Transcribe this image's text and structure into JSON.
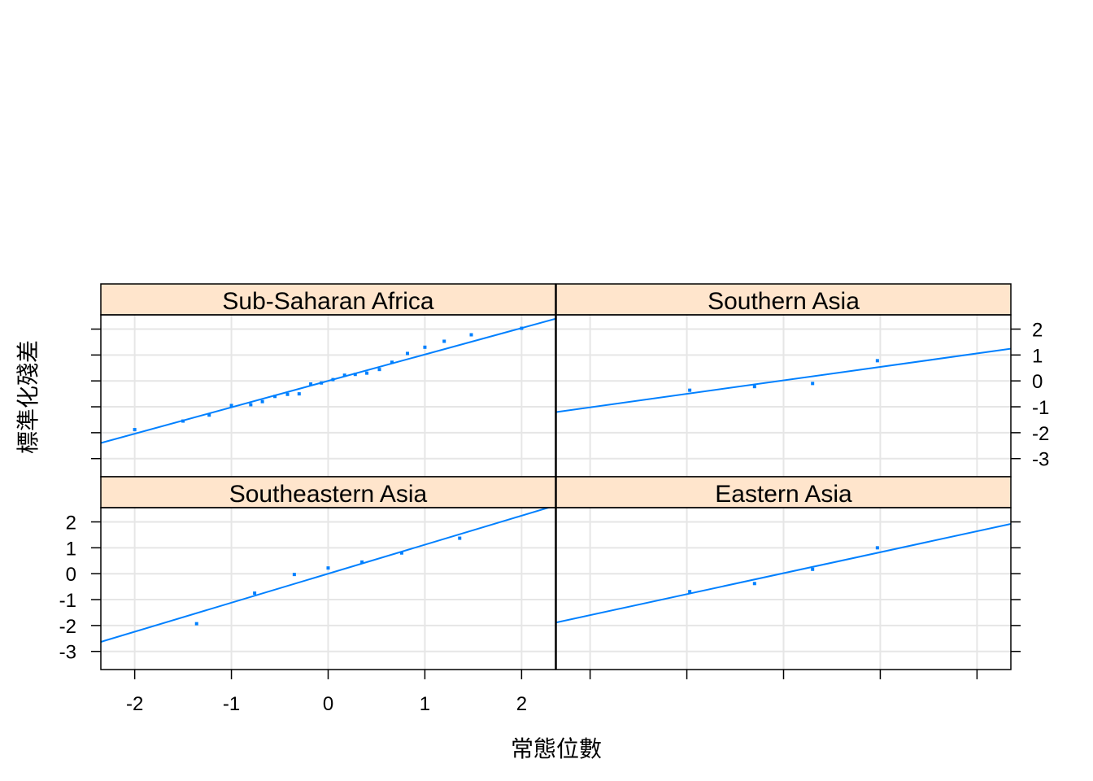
{
  "chart_data": {
    "type": "scatter",
    "kind": "normal-qq-plot-with-reference-line",
    "xlabel": "常態位數",
    "ylabel": "標準化殘差",
    "xlim": [
      -2.35,
      2.35
    ],
    "ylim": [
      -3.7,
      2.55
    ],
    "x_ticks": [
      -2,
      -1,
      0,
      1,
      2
    ],
    "y_ticks": [
      -3,
      -2,
      -1,
      0,
      1,
      2
    ],
    "grid": true,
    "colors": {
      "points": "#0080ff",
      "line": "#0080ff",
      "strip": "#ffe5cc",
      "grid": "#e6e6e6",
      "frame": "#000000"
    },
    "panels": [
      {
        "name": "Sub-Saharan Africa",
        "x": [
          -2.0,
          -1.5,
          -1.23,
          -1.0,
          -0.8,
          -0.68,
          -0.55,
          -0.42,
          -0.3,
          -0.18,
          -0.07,
          0.05,
          0.17,
          0.28,
          0.4,
          0.53,
          0.66,
          0.82,
          1.0,
          1.2,
          1.48,
          2.0
        ],
        "y": [
          -1.88,
          -1.55,
          -1.32,
          -0.95,
          -0.92,
          -0.8,
          -0.6,
          -0.52,
          -0.5,
          -0.12,
          -0.08,
          0.05,
          0.22,
          0.25,
          0.3,
          0.44,
          0.72,
          1.06,
          1.3,
          1.53,
          1.78,
          2.03
        ],
        "line": {
          "intercept": 0.0,
          "slope": 1.02
        }
      },
      {
        "name": "Southern Asia",
        "x": [
          -0.97,
          -0.3,
          0.3,
          0.97
        ],
        "y": [
          -0.36,
          -0.22,
          -0.1,
          0.78
        ],
        "line": {
          "intercept": 0.02,
          "slope": 0.52
        }
      },
      {
        "name": "Southeastern Asia",
        "x": [
          -1.36,
          -0.76,
          -0.35,
          0.0,
          0.35,
          0.76,
          1.36
        ],
        "y": [
          -1.93,
          -0.75,
          -0.03,
          0.22,
          0.45,
          0.8,
          1.37
        ],
        "line": {
          "intercept": 0.0,
          "slope": 1.12
        }
      },
      {
        "name": "Eastern Asia",
        "x": [
          -0.97,
          -0.3,
          0.3,
          0.97
        ],
        "y": [
          -0.69,
          -0.38,
          0.17,
          1.0
        ],
        "line": {
          "intercept": 0.02,
          "slope": 0.81
        }
      }
    ]
  }
}
